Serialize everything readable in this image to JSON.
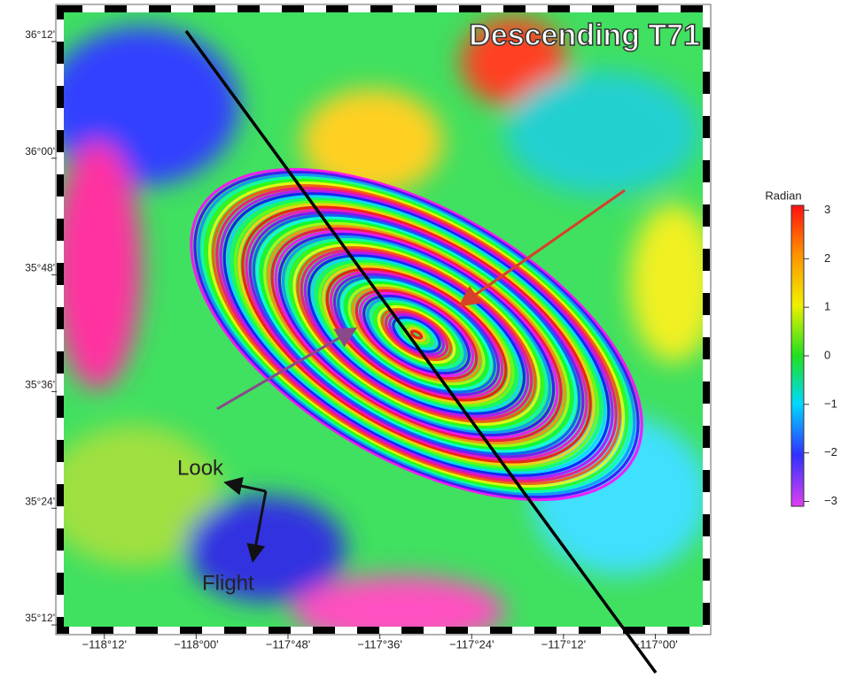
{
  "map": {
    "title": "Descending T71",
    "lon_lim": [
      -118.296,
      -116.889
    ],
    "lat_lim": [
      35.191,
      36.256
    ],
    "lon_ticks": [
      {
        "value": -118.2,
        "label": "−118°12'"
      },
      {
        "value": -118.0,
        "label": "−118°00'"
      },
      {
        "value": -117.8,
        "label": "−117°48'"
      },
      {
        "value": -117.6,
        "label": "−117°36'"
      },
      {
        "value": -117.4,
        "label": "−117°24'"
      },
      {
        "value": -117.2,
        "label": "−117°12'"
      },
      {
        "value": -117.0,
        "label": "−117°00'"
      }
    ],
    "lat_ticks": [
      {
        "value": 36.2,
        "label": "36°12'"
      },
      {
        "value": 36.0,
        "label": "36°00'"
      },
      {
        "value": 35.8,
        "label": "35°48'"
      },
      {
        "value": 35.6,
        "label": "35°36'"
      },
      {
        "value": 35.4,
        "label": "35°24'"
      },
      {
        "value": 35.2,
        "label": "35°12'"
      }
    ],
    "annotations": {
      "look": "Look",
      "flight": "Flight"
    }
  },
  "colorbar": {
    "label": "Radian",
    "lim": [
      -3.1,
      3.1
    ],
    "ticks": [
      3,
      2,
      1,
      0,
      {
        "value": -1,
        "label": "−1"
      },
      {
        "value": -2,
        "label": "−2"
      },
      {
        "value": -3,
        "label": "−3"
      }
    ]
  }
}
